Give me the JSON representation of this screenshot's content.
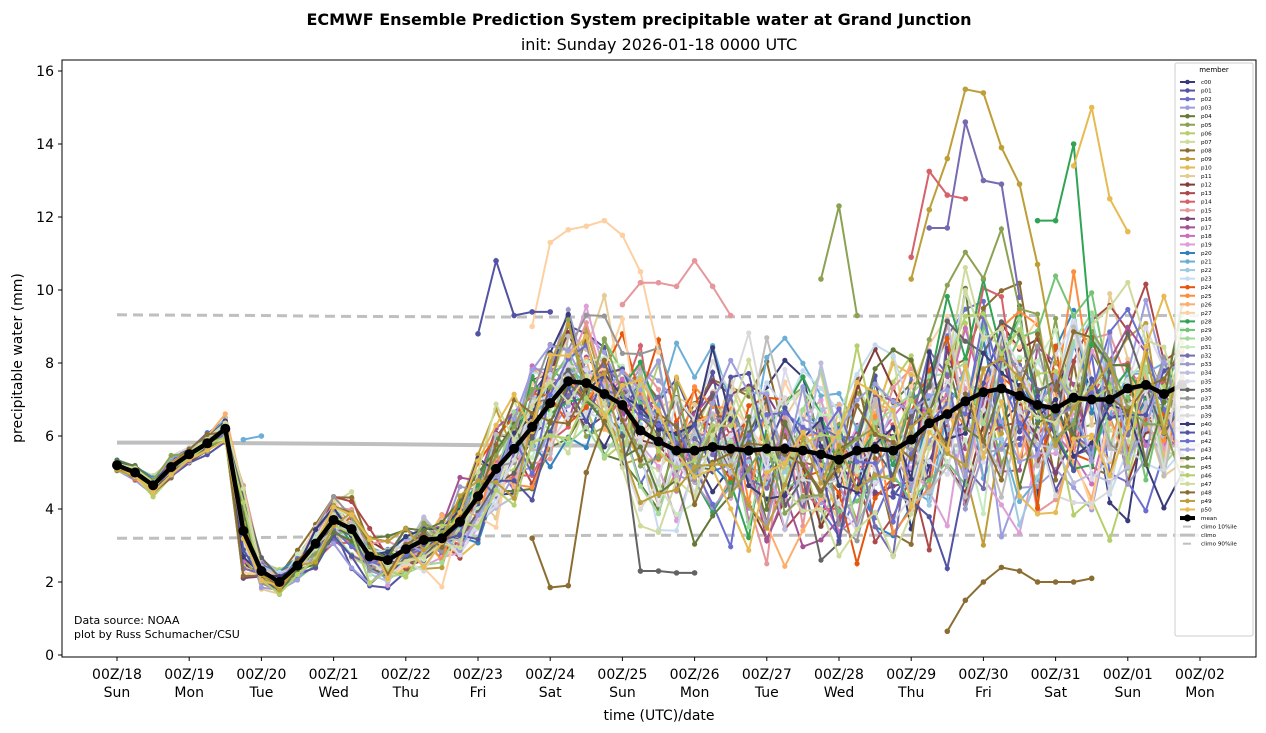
{
  "chart_data": {
    "type": "line",
    "title": "ECMWF Ensemble Prediction System precipitable water at Grand Junction",
    "subtitle": "init: Sunday 2026-01-18 0000 UTC",
    "xlabel": "time (UTC)/date",
    "ylabel": "precipitable water (mm)",
    "ylim": [
      0,
      16.3
    ],
    "xlim_hours": [
      -12,
      354
    ],
    "x_step_hours": 6,
    "yticks": [
      0,
      2,
      4,
      6,
      8,
      10,
      12,
      14,
      16
    ],
    "xticks": [
      {
        "hour": 0,
        "line1": "00Z/18",
        "line2": "Sun"
      },
      {
        "hour": 24,
        "line1": "00Z/19",
        "line2": "Mon"
      },
      {
        "hour": 48,
        "line1": "00Z/20",
        "line2": "Tue"
      },
      {
        "hour": 72,
        "line1": "00Z/21",
        "line2": "Wed"
      },
      {
        "hour": 96,
        "line1": "00Z/22",
        "line2": "Thu"
      },
      {
        "hour": 120,
        "line1": "00Z/23",
        "line2": "Fri"
      },
      {
        "hour": 144,
        "line1": "00Z/24",
        "line2": "Sat"
      },
      {
        "hour": 168,
        "line1": "00Z/25",
        "line2": "Sun"
      },
      {
        "hour": 192,
        "line1": "00Z/26",
        "line2": "Mon"
      },
      {
        "hour": 216,
        "line1": "00Z/27",
        "line2": "Tue"
      },
      {
        "hour": 240,
        "line1": "00Z/28",
        "line2": "Wed"
      },
      {
        "hour": 264,
        "line1": "00Z/29",
        "line2": "Thu"
      },
      {
        "hour": 288,
        "line1": "00Z/30",
        "line2": "Fri"
      },
      {
        "hour": 312,
        "line1": "00Z/31",
        "line2": "Sat"
      },
      {
        "hour": 336,
        "line1": "00Z/01",
        "line2": "Sun"
      },
      {
        "hour": 360,
        "line1": "00Z/02",
        "line2": "Mon"
      }
    ],
    "grid": false,
    "legend": {
      "title": "member",
      "placement": "upper-right"
    },
    "mean": {
      "name": "mean",
      "color": "#000000",
      "values": [
        5.2,
        5.0,
        4.65,
        5.15,
        5.5,
        5.8,
        6.2,
        3.4,
        2.3,
        2.0,
        2.45,
        3.05,
        3.7,
        3.45,
        2.7,
        2.6,
        2.9,
        3.15,
        3.2,
        3.65,
        4.35,
        5.1,
        5.65,
        6.25,
        6.9,
        7.5,
        7.45,
        7.15,
        6.85,
        6.15,
        5.85,
        5.6,
        5.6,
        5.7,
        5.65,
        5.6,
        5.65,
        5.65,
        5.6,
        5.5,
        5.35,
        5.6,
        5.65,
        5.6,
        5.9,
        6.35,
        6.6,
        6.95,
        7.2,
        7.3,
        7.1,
        6.85,
        6.75,
        7.05,
        7.0,
        7.0,
        7.3,
        7.4,
        7.15,
        7.4
      ]
    },
    "climo": [
      {
        "name": "climo 10%ile",
        "style": "dashed",
        "color": "#bfbfbf",
        "start_hour": 0,
        "values_by_day": [
          3.2,
          3.2,
          3.22,
          3.24,
          3.26,
          3.26,
          3.27,
          3.28,
          3.28,
          3.28,
          3.28,
          3.28,
          3.28,
          3.28,
          3.28,
          3.28
        ]
      },
      {
        "name": "climo",
        "style": "solid",
        "color": "#bfbfbf",
        "start_hour": 0,
        "values_by_day": [
          5.82,
          5.82,
          5.8,
          5.79,
          5.77,
          5.75,
          5.74,
          5.74,
          5.74,
          5.74,
          5.74,
          5.74,
          5.74,
          5.74,
          5.74,
          5.74
        ]
      },
      {
        "name": "climo 90%ile",
        "style": "dashed",
        "color": "#bfbfbf",
        "start_hour": 0,
        "values_by_day": [
          9.32,
          9.31,
          9.3,
          9.28,
          9.27,
          9.26,
          9.26,
          9.26,
          9.26,
          9.27,
          9.28,
          9.29,
          9.3,
          9.3,
          9.3,
          9.3
        ]
      }
    ],
    "members": {
      "names": [
        "c00",
        "p01",
        "p02",
        "p03",
        "p04",
        "p05",
        "p06",
        "p07",
        "p08",
        "p09",
        "p10",
        "p11",
        "p12",
        "p13",
        "p14",
        "p15",
        "p16",
        "p17",
        "p18",
        "p19",
        "p20",
        "p21",
        "p22",
        "p23",
        "p24",
        "p25",
        "p26",
        "p27",
        "p28",
        "p29",
        "p30",
        "p31",
        "p32",
        "p33",
        "p34",
        "p35",
        "p36",
        "p37",
        "p38",
        "p39",
        "p40",
        "p41",
        "p42",
        "p43",
        "p44",
        "p45",
        "p46",
        "p47",
        "p48",
        "p49",
        "p50"
      ],
      "colors": [
        "#393b79",
        "#5254a3",
        "#6b6ecf",
        "#9c9ede",
        "#637939",
        "#8ca252",
        "#b5cf6b",
        "#cedb9c",
        "#8c6d31",
        "#bd9e39",
        "#e7ba52",
        "#e7cb94",
        "#843c39",
        "#ad494a",
        "#d6616b",
        "#e7969c",
        "#7b4173",
        "#a55194",
        "#ce6dbd",
        "#de9ed6",
        "#3182bd",
        "#6baed6",
        "#9ecae1",
        "#c6dbef",
        "#e6550d",
        "#fd8d3c",
        "#fdae6b",
        "#fdd0a2",
        "#31a354",
        "#74c476",
        "#a1d99b",
        "#c7e9c0",
        "#756bb1",
        "#9e9ac8",
        "#bcbddc",
        "#dadaeb",
        "#636363",
        "#969696",
        "#bdbdbd",
        "#d9d9d9",
        "#393b79",
        "#5254a3",
        "#6b6ecf",
        "#9c9ede",
        "#637939",
        "#8ca252",
        "#b5cf6b",
        "#cedb9c",
        "#8c6d31",
        "#bd9e39",
        "#e7ba52"
      ],
      "spread_by_step": [
        0.15,
        0.2,
        0.25,
        0.25,
        0.25,
        0.25,
        0.3,
        1.0,
        0.4,
        0.35,
        0.4,
        0.5,
        0.6,
        0.8,
        0.7,
        0.7,
        0.7,
        0.8,
        0.8,
        1.0,
        1.3,
        1.5,
        1.6,
        1.7,
        1.7,
        1.6,
        1.6,
        1.8,
        1.9,
        2.0,
        2.1,
        2.1,
        2.1,
        2.2,
        2.3,
        2.3,
        2.3,
        2.3,
        2.3,
        2.4,
        2.4,
        2.5,
        2.5,
        2.6,
        2.7,
        2.8,
        2.9,
        3.0,
        3.0,
        3.0,
        3.0,
        3.0,
        2.9,
        2.9,
        2.9,
        2.9,
        2.8,
        2.8,
        2.8,
        2.8
      ],
      "highlights": [
        {
          "member": "p09",
          "hours": [
            264,
            270,
            276,
            282,
            288,
            294,
            300,
            306,
            312
          ],
          "values": [
            10.3,
            12.2,
            13.6,
            15.5,
            15.4,
            13.9,
            12.9,
            10.7,
            8.0
          ]
        },
        {
          "member": "p32",
          "hours": [
            270,
            276,
            282,
            288,
            294,
            300
          ],
          "values": [
            11.7,
            11.7,
            14.6,
            13.0,
            12.9,
            9.8
          ]
        },
        {
          "member": "p27",
          "hours": [
            138,
            144,
            150,
            156,
            162,
            168,
            174,
            180
          ],
          "values": [
            9.0,
            11.3,
            11.65,
            11.75,
            11.9,
            11.5,
            10.5,
            8.3
          ]
        },
        {
          "member": "p01",
          "hours": [
            120,
            126,
            132,
            138,
            144
          ],
          "values": [
            8.8,
            10.8,
            9.3,
            9.4,
            9.4
          ]
        },
        {
          "member": "p28",
          "hours": [
            306,
            312,
            318,
            324
          ],
          "values": [
            11.9,
            11.9,
            14.0,
            8.5
          ]
        },
        {
          "member": "p10",
          "hours": [
            318,
            324,
            330,
            336
          ],
          "values": [
            13.4,
            15.0,
            12.5,
            11.6
          ]
        },
        {
          "member": "p05",
          "hours": [
            234,
            240,
            246
          ],
          "values": [
            10.3,
            12.3,
            9.3
          ]
        },
        {
          "member": "p08",
          "hours": [
            138,
            144,
            150,
            156,
            162
          ],
          "values": [
            3.2,
            1.85,
            1.9,
            5.0,
            6.4
          ]
        },
        {
          "member": "p08",
          "hours": [
            276,
            282,
            288,
            294,
            300,
            306,
            312,
            318,
            324
          ],
          "values": [
            0.65,
            1.5,
            2.0,
            2.4,
            2.3,
            2.0,
            2.0,
            2.0,
            2.1
          ]
        },
        {
          "member": "p14",
          "hours": [
            264,
            270,
            276,
            282
          ],
          "values": [
            10.9,
            13.25,
            12.6,
            12.5
          ]
        },
        {
          "member": "p15",
          "hours": [
            168,
            174,
            180,
            186,
            192,
            198,
            204
          ],
          "values": [
            9.6,
            10.2,
            10.2,
            10.1,
            10.8,
            10.1,
            9.3
          ]
        },
        {
          "member": "p36",
          "hours": [
            168,
            174,
            180,
            186,
            192
          ],
          "values": [
            6.0,
            2.3,
            2.3,
            2.25,
            2.25
          ]
        },
        {
          "member": "p21",
          "hours": [
            42,
            48
          ],
          "values": [
            5.9,
            6.0
          ]
        }
      ],
      "seed": 7
    }
  },
  "annotation": {
    "line1": "Data source: NOAA",
    "line2": "plot by Russ Schumacher/CSU"
  }
}
